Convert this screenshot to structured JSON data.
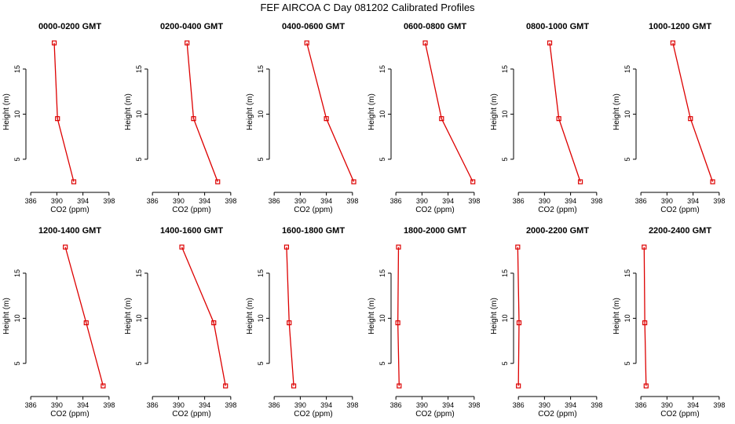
{
  "figure_title": "FEF AIRCOA C  Day 081202  Calibrated Profiles",
  "chart_data": {
    "type": "line",
    "xlabel": "CO2 (ppm)",
    "ylabel": "Height (m)",
    "xlim": [
      385.5,
      398.5
    ],
    "ylim": [
      1.5,
      19
    ],
    "xticks": [
      386,
      390,
      394,
      398
    ],
    "yticks": [
      5,
      10,
      15
    ],
    "series_color": "#dd0000",
    "heights": [
      2.5,
      9.5,
      17.9
    ],
    "panels": [
      {
        "title": "0000-0200 GMT",
        "co2": [
          392.6,
          390.1,
          389.6
        ]
      },
      {
        "title": "0200-0400 GMT",
        "co2": [
          396.0,
          392.3,
          391.3
        ]
      },
      {
        "title": "0400-0600 GMT",
        "co2": [
          398.2,
          394.0,
          391.0
        ]
      },
      {
        "title": "0600-0800 GMT",
        "co2": [
          397.8,
          393.0,
          390.5
        ]
      },
      {
        "title": "0800-1000 GMT",
        "co2": [
          395.5,
          392.2,
          390.8
        ]
      },
      {
        "title": "1000-1200 GMT",
        "co2": [
          397.0,
          393.6,
          390.9
        ]
      },
      {
        "title": "1200-1400 GMT",
        "co2": [
          397.1,
          394.5,
          391.3
        ]
      },
      {
        "title": "1400-1600 GMT",
        "co2": [
          397.2,
          395.4,
          390.5
        ]
      },
      {
        "title": "1600-1800 GMT",
        "co2": [
          389.0,
          388.3,
          387.9
        ]
      },
      {
        "title": "1800-2000 GMT",
        "co2": [
          386.5,
          386.3,
          386.4
        ]
      },
      {
        "title": "2000-2200 GMT",
        "co2": [
          386.0,
          386.1,
          385.9
        ]
      },
      {
        "title": "2200-2400 GMT",
        "co2": [
          386.8,
          386.6,
          386.5
        ]
      }
    ]
  }
}
